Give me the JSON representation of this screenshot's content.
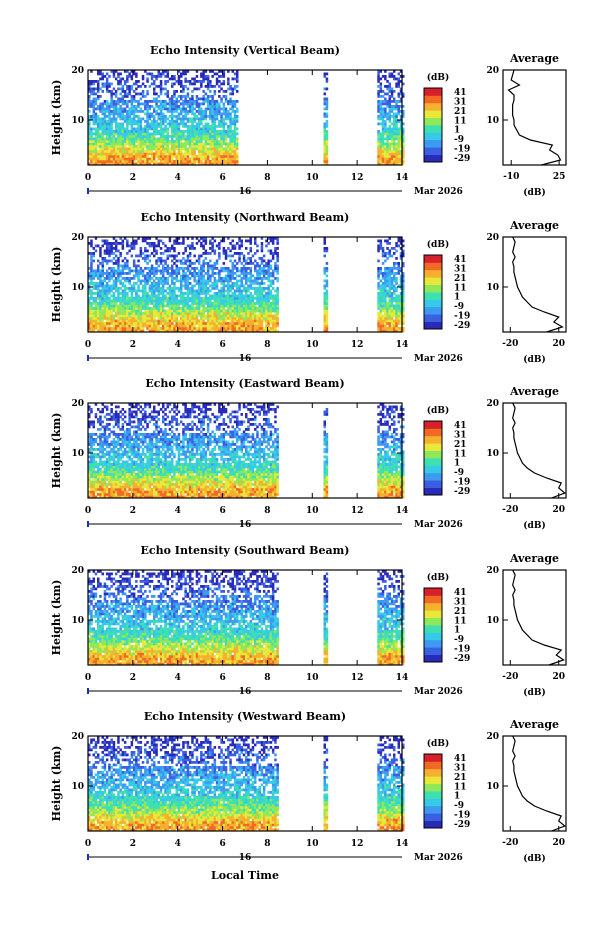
{
  "chart_data": [
    {
      "type": "heatmap",
      "title": "Echo Intensity (Vertical Beam)",
      "ylabel": "Height (km)",
      "xlim": [
        0,
        14
      ],
      "ylim": [
        1,
        20
      ],
      "xticks": [
        "0",
        "2",
        "4",
        "6",
        "8",
        "10",
        "12",
        "14"
      ],
      "yticks": [
        "10",
        "20"
      ],
      "date_label": "16",
      "month_label": "Mar 2026",
      "data_gaps_hours": [
        [
          6.6,
          10.4
        ],
        [
          10.6,
          12.8
        ]
      ],
      "average_profile": {
        "title": "Average",
        "xlabel": "(dB)",
        "xticks": [
          "-10",
          "25"
        ],
        "xlim": [
          -16,
          30
        ],
        "yticks": [
          "10",
          "20"
        ],
        "heights": [
          1,
          2,
          3,
          4,
          5,
          6,
          7,
          8,
          9,
          10,
          11,
          12,
          13,
          14,
          15,
          16,
          17,
          18,
          19,
          20
        ],
        "values": [
          12,
          26,
          24,
          18,
          20,
          4,
          -4,
          -6,
          -8,
          -8,
          -9,
          -9,
          -9,
          -8,
          -8,
          -12,
          -4,
          -10,
          -9,
          -8
        ]
      }
    },
    {
      "type": "heatmap",
      "title": "Echo Intensity (Northward Beam)",
      "ylabel": "Height (km)",
      "xlim": [
        0,
        14
      ],
      "ylim": [
        1,
        20
      ],
      "xticks": [
        "0",
        "2",
        "4",
        "6",
        "8",
        "10",
        "12",
        "14"
      ],
      "yticks": [
        "10",
        "20"
      ],
      "date_label": "16",
      "month_label": "Mar 2026",
      "data_gaps_hours": [
        [
          8.4,
          10.4
        ],
        [
          10.6,
          12.8
        ]
      ],
      "average_profile": {
        "title": "Average",
        "xlabel": "(dB)",
        "xticks": [
          "-20",
          "20"
        ],
        "xlim": [
          -26,
          26
        ],
        "yticks": [
          "10",
          "20"
        ],
        "heights": [
          1,
          2,
          3,
          4,
          5,
          6,
          7,
          8,
          9,
          10,
          11,
          12,
          13,
          14,
          15,
          16,
          17,
          18,
          19,
          20
        ],
        "values": [
          10,
          23,
          16,
          20,
          8,
          -2,
          -6,
          -10,
          -12,
          -14,
          -15,
          -16,
          -17,
          -17,
          -18,
          -16,
          -18,
          -17,
          -16,
          -18
        ]
      }
    },
    {
      "type": "heatmap",
      "title": "Echo Intensity (Eastward Beam)",
      "ylabel": "Height (km)",
      "xlim": [
        0,
        14
      ],
      "ylim": [
        1,
        20
      ],
      "xticks": [
        "0",
        "2",
        "4",
        "6",
        "8",
        "10",
        "12",
        "14"
      ],
      "yticks": [
        "10",
        "20"
      ],
      "date_label": "16",
      "month_label": "Mar 2026",
      "data_gaps_hours": [
        [
          8.4,
          10.4
        ],
        [
          10.6,
          12.8
        ]
      ],
      "average_profile": {
        "title": "Average",
        "xlabel": "(dB)",
        "xticks": [
          "-20",
          "20"
        ],
        "xlim": [
          -26,
          26
        ],
        "yticks": [
          "10",
          "20"
        ],
        "heights": [
          1,
          2,
          3,
          4,
          5,
          6,
          7,
          8,
          9,
          10,
          11,
          12,
          13,
          14,
          15,
          16,
          17,
          18,
          19,
          20
        ],
        "values": [
          14,
          25,
          20,
          22,
          10,
          0,
          -6,
          -10,
          -12,
          -14,
          -15,
          -16,
          -17,
          -17,
          -18,
          -16,
          -18,
          -17,
          -16,
          -18
        ]
      }
    },
    {
      "type": "heatmap",
      "title": "Echo Intensity (Southward Beam)",
      "ylabel": "Height (km)",
      "xlim": [
        0,
        14
      ],
      "ylim": [
        1,
        20
      ],
      "xticks": [
        "0",
        "2",
        "4",
        "6",
        "8",
        "10",
        "12",
        "14"
      ],
      "yticks": [
        "10",
        "20"
      ],
      "date_label": "16",
      "month_label": "Mar 2026",
      "data_gaps_hours": [
        [
          8.4,
          10.4
        ],
        [
          10.6,
          12.8
        ]
      ],
      "average_profile": {
        "title": "Average",
        "xlabel": "(dB)",
        "xticks": [
          "-20",
          "20"
        ],
        "xlim": [
          -26,
          26
        ],
        "yticks": [
          "10",
          "20"
        ],
        "heights": [
          1,
          2,
          3,
          4,
          5,
          6,
          7,
          8,
          9,
          10,
          11,
          12,
          13,
          14,
          15,
          16,
          17,
          18,
          19,
          20
        ],
        "values": [
          12,
          24,
          18,
          22,
          8,
          -2,
          -6,
          -10,
          -12,
          -14,
          -15,
          -16,
          -17,
          -17,
          -18,
          -16,
          -18,
          -17,
          -16,
          -18
        ]
      }
    },
    {
      "type": "heatmap",
      "title": "Echo Intensity (Westward Beam)",
      "ylabel": "Height (km)",
      "xlabel": "Local Time",
      "xlim": [
        0,
        14
      ],
      "ylim": [
        1,
        20
      ],
      "xticks": [
        "0",
        "2",
        "4",
        "6",
        "8",
        "10",
        "12",
        "14"
      ],
      "yticks": [
        "10",
        "20"
      ],
      "date_label": "16",
      "month_label": "Mar 2026",
      "data_gaps_hours": [
        [
          8.4,
          10.4
        ],
        [
          10.6,
          12.8
        ]
      ],
      "average_profile": {
        "title": "Average",
        "xlabel": "(dB)",
        "xticks": [
          "-20",
          "20"
        ],
        "xlim": [
          -26,
          26
        ],
        "yticks": [
          "10",
          "20"
        ],
        "heights": [
          1,
          2,
          3,
          4,
          5,
          6,
          7,
          8,
          9,
          10,
          11,
          12,
          13,
          14,
          15,
          16,
          17,
          18,
          19,
          20
        ],
        "values": [
          14,
          25,
          20,
          22,
          10,
          0,
          -6,
          -10,
          -12,
          -14,
          -15,
          -16,
          -17,
          -17,
          -18,
          -16,
          -18,
          -17,
          -16,
          -18
        ]
      }
    }
  ],
  "colorbar": {
    "label": "(dB)",
    "ticks": [
      "41",
      "31",
      "21",
      "11",
      "1",
      "-9",
      "-19",
      "-29"
    ],
    "range": [
      -29,
      41
    ],
    "colors": [
      "#2a2ab8",
      "#3a5fe0",
      "#3d9af0",
      "#36c9e8",
      "#3fe0b0",
      "#8ee85a",
      "#e8e83a",
      "#f5b030",
      "#f06a25",
      "#d8202a"
    ]
  }
}
